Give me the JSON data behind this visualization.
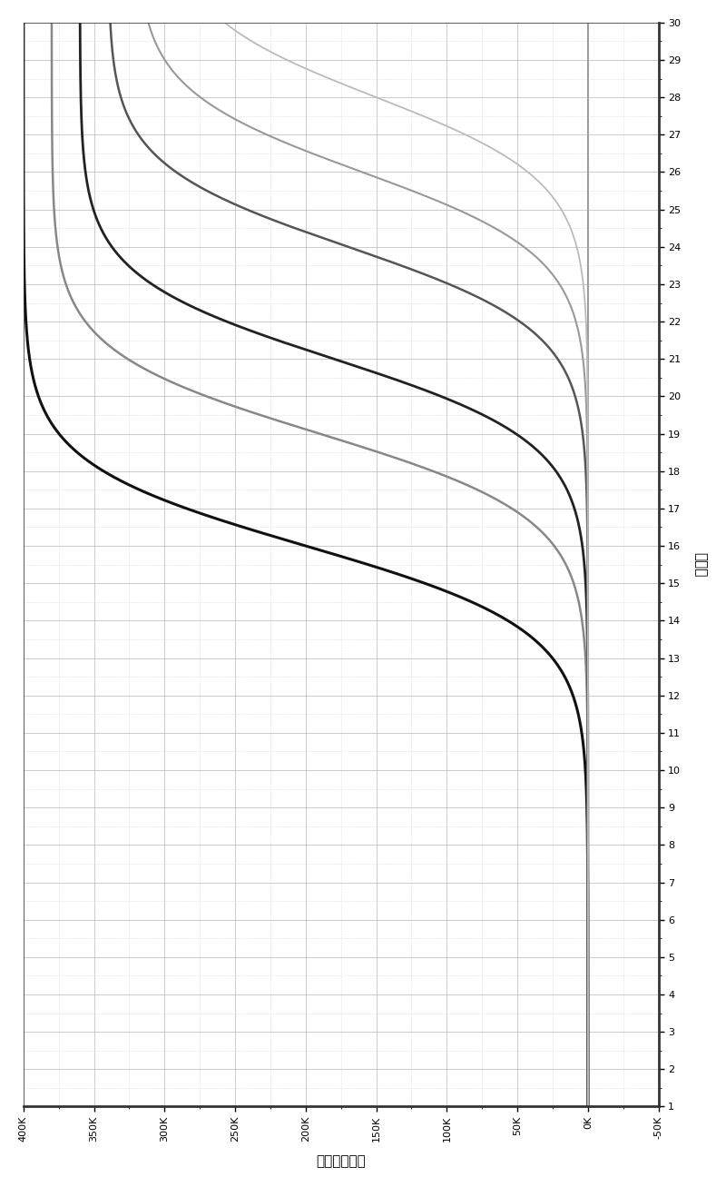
{
  "title": "",
  "xlabel": "相对荆光强度",
  "ylabel": "循环数",
  "xlim": [
    400000,
    -50000
  ],
  "ylim": [
    1,
    30
  ],
  "xticks": [
    400000,
    350000,
    300000,
    250000,
    200000,
    150000,
    100000,
    50000,
    0,
    -50000
  ],
  "xticklabels": [
    "400K",
    "350K",
    "300K",
    "250K",
    "200K",
    "150K",
    "100K",
    "50K",
    "0K",
    "-50K"
  ],
  "yticks": [
    1,
    2,
    3,
    4,
    5,
    6,
    7,
    8,
    9,
    10,
    11,
    12,
    13,
    14,
    15,
    16,
    17,
    18,
    19,
    20,
    21,
    22,
    23,
    24,
    25,
    26,
    27,
    28,
    29,
    30
  ],
  "background_color": "#ffffff",
  "grid_major_color": "#aaaaaa",
  "grid_minor_color": "#cccccc",
  "curves": [
    {
      "ct": 16,
      "max_rfu": 400000,
      "color": "#111111",
      "lw": 2.2
    },
    {
      "ct": 19,
      "max_rfu": 380000,
      "color": "#888888",
      "lw": 1.8
    },
    {
      "ct": 21,
      "max_rfu": 360000,
      "color": "#222222",
      "lw": 2.0
    },
    {
      "ct": 24,
      "max_rfu": 340000,
      "color": "#555555",
      "lw": 1.8
    },
    {
      "ct": 26,
      "max_rfu": 320000,
      "color": "#999999",
      "lw": 1.5
    },
    {
      "ct": 28,
      "max_rfu": 300000,
      "color": "#bbbbbb",
      "lw": 1.3
    }
  ],
  "baseline": 0,
  "efficiency": 0.85
}
